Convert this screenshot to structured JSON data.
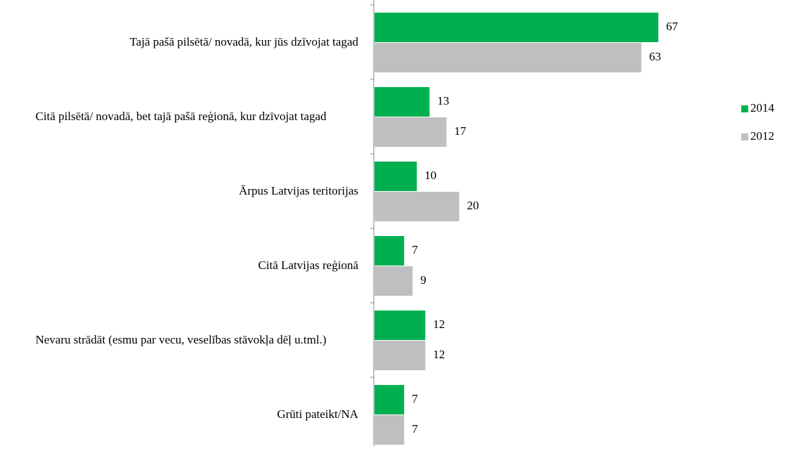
{
  "chart_data": {
    "type": "bar",
    "orientation": "horizontal",
    "categories": [
      "Tajā pašā pilsētā/ novadā, kur jūs dzīvojat tagad",
      "Citā pilsētā/ novadā, bet tajā pašā reģionā, kur dzīvojat tagad",
      "Ārpus Latvijas teritorijas",
      "Citā Latvijas reģionā",
      "Nevaru strādāt (esmu par vecu, veselības stāvokļa dēļ u.tml.)",
      "Grūti pateikt/NA"
    ],
    "series": [
      {
        "name": "2014",
        "color": "#00b050",
        "values": [
          67,
          13,
          10,
          7,
          12,
          7
        ]
      },
      {
        "name": "2012",
        "color": "#bfbfbf",
        "values": [
          63,
          17,
          20,
          9,
          12,
          7
        ]
      }
    ],
    "legend": "right"
  }
}
